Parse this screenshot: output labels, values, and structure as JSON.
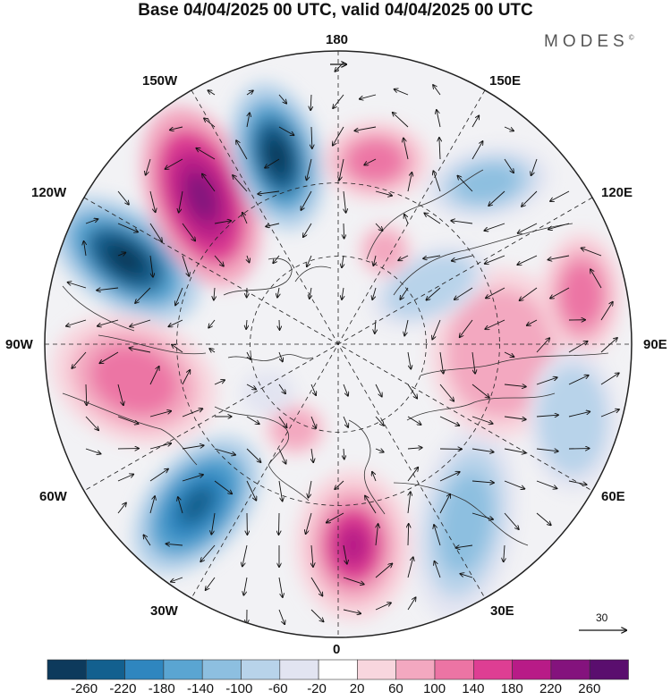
{
  "title": "Base 04/04/2025 00 UTC, valid 04/04/2025 00 UTC",
  "logo": "MODES",
  "logo_mark": "©",
  "longitude_labels": {
    "top": "180",
    "bottom": "0",
    "left": "90W",
    "right": "90E",
    "upper_left": "150W",
    "upper_right": "150E",
    "mid_upper_left": "120W",
    "mid_upper_right": "120E",
    "mid_lower_left": "60W",
    "mid_lower_right": "60E",
    "lower_left": "30W",
    "lower_right": "30E"
  },
  "vector_reference": {
    "label": "30"
  },
  "colorbar": {
    "ticks": [
      "-260",
      "-220",
      "-180",
      "-140",
      "-100",
      "-60",
      "-20",
      "20",
      "60",
      "100",
      "140",
      "180",
      "220",
      "260"
    ],
    "colors": [
      "#0d3a5c",
      "#13608f",
      "#2f86bf",
      "#5aa5d2",
      "#8dbfe0",
      "#b8d3ea",
      "#e2e4f1",
      "#ffffff",
      "#f8d6de",
      "#f3a8c0",
      "#ec74a4",
      "#de3e93",
      "#b81b87",
      "#84137d",
      "#5a0e6e"
    ]
  },
  "map": {
    "projection": "north polar stereographic",
    "anomaly_centers": [
      {
        "name": "low-gulf-of-alaska",
        "sign": "negative",
        "level": "strong"
      },
      {
        "name": "high-alaska",
        "sign": "positive",
        "level": "very-strong"
      },
      {
        "name": "low-bering",
        "sign": "negative",
        "level": "strong"
      },
      {
        "name": "low-hudson",
        "sign": "negative",
        "level": "moderate"
      },
      {
        "name": "high-us",
        "sign": "positive",
        "level": "moderate"
      },
      {
        "name": "low-atlantic",
        "sign": "negative",
        "level": "strong"
      },
      {
        "name": "high-europe-west",
        "sign": "positive",
        "level": "strong"
      },
      {
        "name": "low-europe-east",
        "sign": "negative",
        "level": "moderate"
      },
      {
        "name": "high-siberia",
        "sign": "positive",
        "level": "moderate"
      },
      {
        "name": "high-east-siberia",
        "sign": "positive",
        "level": "moderate"
      },
      {
        "name": "low-east-asia",
        "sign": "negative",
        "level": "moderate"
      },
      {
        "name": "high-north-pacific",
        "sign": "positive",
        "level": "strong"
      }
    ]
  }
}
